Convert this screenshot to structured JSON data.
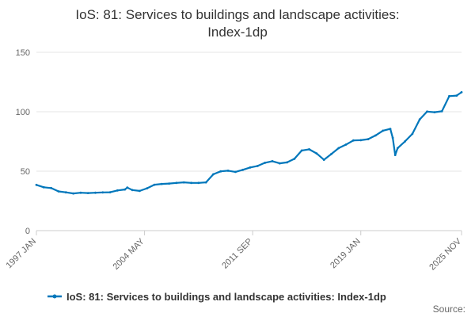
{
  "chart_data": {
    "type": "line",
    "title_line1": "IoS: 81: Services to buildings and landscape activities:",
    "title_line2": "Index-1dp",
    "xlabel": "",
    "ylabel": "",
    "ylim": [
      0,
      150
    ],
    "y_ticks": [
      0,
      50,
      100,
      150
    ],
    "x_ticks": [
      "1997 JAN",
      "2004 MAY",
      "2011 SEP",
      "2019 JAN",
      "2025 NOV"
    ],
    "grid": "horizontal",
    "legend_position": "bottom",
    "source_label": "Source:",
    "series": [
      {
        "name": "IoS: 81: Services to buildings and landscape activities: Index-1dp",
        "color": "#0077bb",
        "points": [
          [
            "1997-01",
            38.5
          ],
          [
            "1997-07",
            36.5
          ],
          [
            "1998-01",
            35.8
          ],
          [
            "1998-07",
            33.0
          ],
          [
            "1999-01",
            32.2
          ],
          [
            "1999-07",
            31.3
          ],
          [
            "2000-01",
            31.9
          ],
          [
            "2000-07",
            31.6
          ],
          [
            "2001-01",
            31.9
          ],
          [
            "2001-07",
            32.1
          ],
          [
            "2002-01",
            32.3
          ],
          [
            "2002-07",
            33.8
          ],
          [
            "2003-01",
            34.6
          ],
          [
            "2003-03",
            36.2
          ],
          [
            "2003-07",
            34.1
          ],
          [
            "2004-01",
            33.4
          ],
          [
            "2004-07",
            35.6
          ],
          [
            "2005-01",
            38.6
          ],
          [
            "2005-07",
            39.3
          ],
          [
            "2006-01",
            39.6
          ],
          [
            "2006-07",
            40.1
          ],
          [
            "2007-01",
            40.6
          ],
          [
            "2007-07",
            40.1
          ],
          [
            "2008-01",
            40.1
          ],
          [
            "2008-07",
            40.6
          ],
          [
            "2009-01",
            47.4
          ],
          [
            "2009-07",
            49.9
          ],
          [
            "2010-01",
            50.4
          ],
          [
            "2010-07",
            49.4
          ],
          [
            "2011-01",
            51.1
          ],
          [
            "2011-07",
            53.1
          ],
          [
            "2012-01",
            54.4
          ],
          [
            "2012-07",
            57.1
          ],
          [
            "2013-01",
            58.4
          ],
          [
            "2013-07",
            56.6
          ],
          [
            "2014-01",
            57.4
          ],
          [
            "2014-07",
            60.4
          ],
          [
            "2015-01",
            67.4
          ],
          [
            "2015-07",
            68.4
          ],
          [
            "2016-01",
            64.9
          ],
          [
            "2016-07",
            59.6
          ],
          [
            "2017-01",
            64.4
          ],
          [
            "2017-07",
            69.4
          ],
          [
            "2018-01",
            72.4
          ],
          [
            "2018-07",
            75.9
          ],
          [
            "2019-01",
            76.1
          ],
          [
            "2019-07",
            76.9
          ],
          [
            "2020-01",
            80.1
          ],
          [
            "2020-07",
            84.1
          ],
          [
            "2021-01",
            85.6
          ],
          [
            "2021-03",
            78.1
          ],
          [
            "2021-05",
            63.6
          ],
          [
            "2021-07",
            69.4
          ],
          [
            "2022-01",
            75.1
          ],
          [
            "2022-07",
            81.4
          ],
          [
            "2023-01",
            93.6
          ],
          [
            "2023-07",
            100.1
          ],
          [
            "2024-01",
            99.6
          ],
          [
            "2024-07",
            100.4
          ],
          [
            "2025-01",
            113.1
          ],
          [
            "2025-07",
            113.6
          ],
          [
            "2025-11",
            116.4
          ]
        ]
      }
    ]
  }
}
